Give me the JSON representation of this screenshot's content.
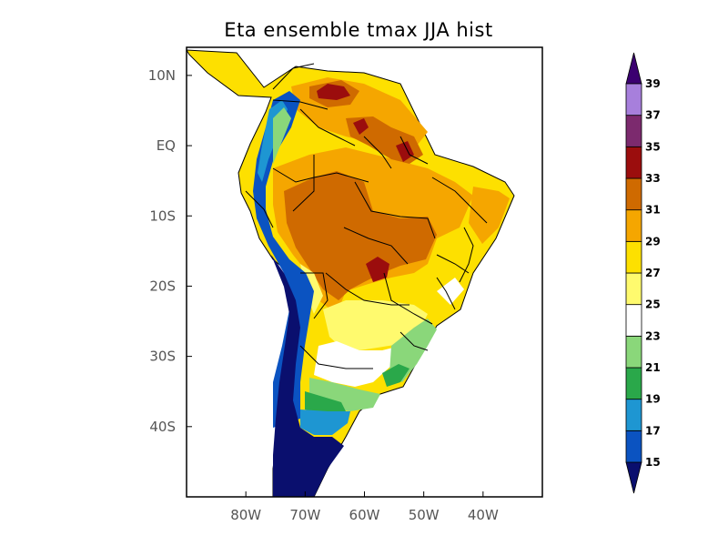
{
  "title": "Eta ensemble tmax JJA hist",
  "axes": {
    "lon_range_deg": [
      -90,
      -30
    ],
    "lat_range_deg": [
      -50,
      14
    ],
    "x_ticks": [
      "80W",
      "70W",
      "60W",
      "50W",
      "40W"
    ],
    "x_tick_values": [
      -80,
      -70,
      -60,
      -50,
      -40
    ],
    "y_ticks": [
      "10N",
      "EQ",
      "10S",
      "20S",
      "30S",
      "40S"
    ],
    "y_tick_values": [
      10,
      0,
      -10,
      -20,
      -30,
      -40
    ]
  },
  "colorbar": {
    "labels": [
      "15",
      "17",
      "19",
      "21",
      "23",
      "25",
      "27",
      "29",
      "31",
      "33",
      "35",
      "37",
      "39"
    ],
    "bins": [
      {
        "range": "<15",
        "color": "#0a0f6e"
      },
      {
        "range": "15-17",
        "color": "#0b53c1"
      },
      {
        "range": "17-19",
        "color": "#1e96d2"
      },
      {
        "range": "19-21",
        "color": "#2aa84a"
      },
      {
        "range": "21-23",
        "color": "#8ad77a"
      },
      {
        "range": "23-25",
        "color": "#ffffff"
      },
      {
        "range": "25-27",
        "color": "#fffa6e"
      },
      {
        "range": "27-29",
        "color": "#fde000"
      },
      {
        "range": "29-31",
        "color": "#f5a600"
      },
      {
        "range": "31-33",
        "color": "#cf6a00"
      },
      {
        "range": "33-35",
        "color": "#9b0d0d"
      },
      {
        "range": "35-37",
        "color": "#7c2a6e"
      },
      {
        "range": "37-39",
        "color": "#a77fdc"
      },
      {
        "range": ">39",
        "color": "#3b0070"
      }
    ]
  }
}
